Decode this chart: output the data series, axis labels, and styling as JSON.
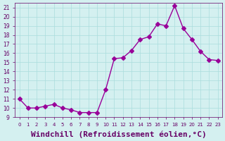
{
  "x": [
    0,
    1,
    2,
    3,
    4,
    5,
    6,
    7,
    8,
    9,
    10,
    11,
    12,
    13,
    14,
    15,
    16,
    17,
    18,
    19,
    20,
    21,
    22,
    23
  ],
  "y": [
    11,
    10,
    10,
    10.2,
    10.4,
    10,
    9.8,
    9.5,
    9.5,
    9.5,
    12,
    15.4,
    15.5,
    16.3,
    17.5,
    17.8,
    19.2,
    19.0,
    21.2,
    18.7,
    17.5,
    16.2,
    15.3,
    15.2
  ],
  "line_color": "#990099",
  "marker": "D",
  "marker_size": 3,
  "line_width": 1.0,
  "xlabel": "Windchill (Refroidissement éolien,°C)",
  "xlabel_fontsize": 8,
  "background_color": "#d4f0f0",
  "grid_color": "#aadddd",
  "tick_color": "#660066",
  "ylim": [
    9,
    21.5
  ],
  "xlim": [
    -0.5,
    23.5
  ],
  "yticks": [
    9,
    10,
    11,
    12,
    13,
    14,
    15,
    16,
    17,
    18,
    19,
    20,
    21
  ],
  "xticks": [
    0,
    1,
    2,
    3,
    4,
    5,
    6,
    7,
    8,
    9,
    10,
    11,
    12,
    13,
    14,
    15,
    16,
    17,
    18,
    19,
    20,
    21,
    22,
    23
  ]
}
